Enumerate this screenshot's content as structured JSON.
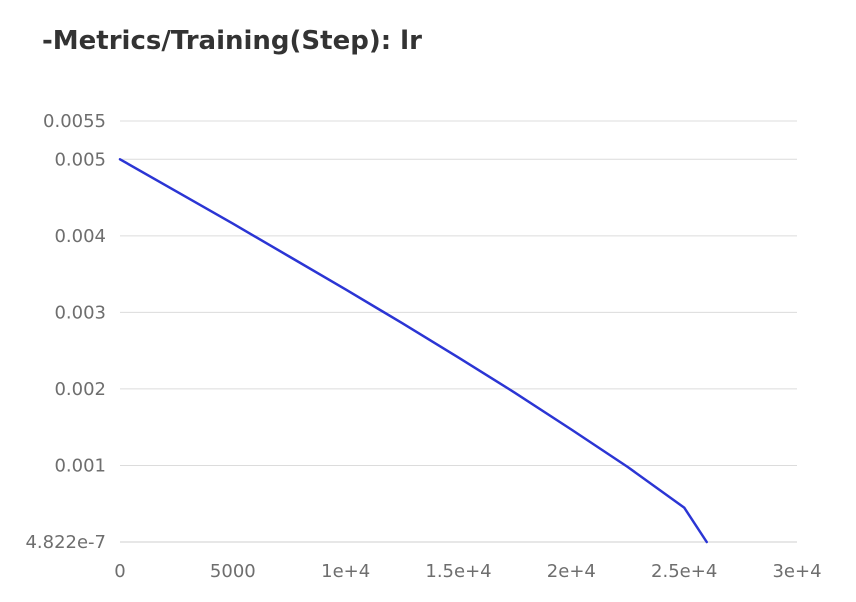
{
  "chart_data": {
    "type": "line",
    "title": "-Metrics/Training(Step): lr",
    "xlabel": "",
    "ylabel": "",
    "xlim": [
      0,
      30000
    ],
    "ylim": [
      4.822e-07,
      0.0055
    ],
    "x_ticks": [
      {
        "value": 0,
        "label": "0"
      },
      {
        "value": 5000,
        "label": "5000"
      },
      {
        "value": 10000,
        "label": "1e+4"
      },
      {
        "value": 15000,
        "label": "1.5e+4"
      },
      {
        "value": 20000,
        "label": "2e+4"
      },
      {
        "value": 25000,
        "label": "2.5e+4"
      },
      {
        "value": 30000,
        "label": "3e+4"
      }
    ],
    "y_ticks": [
      {
        "value": 4.822e-07,
        "label": "4.822e-7"
      },
      {
        "value": 0.001,
        "label": "0.001"
      },
      {
        "value": 0.002,
        "label": "0.002"
      },
      {
        "value": 0.003,
        "label": "0.003"
      },
      {
        "value": 0.004,
        "label": "0.004"
      },
      {
        "value": 0.005,
        "label": "0.005"
      },
      {
        "value": 0.0055,
        "label": "0.0055"
      }
    ],
    "grid": true,
    "legend": "none",
    "series": [
      {
        "color": "#2b35d4",
        "x": [
          0,
          2500,
          5000,
          7500,
          10000,
          12500,
          15000,
          17500,
          20000,
          22500,
          25000,
          26000
        ],
        "y": [
          0.005,
          0.00458,
          0.00416,
          0.00373,
          0.0033,
          0.00286,
          0.00241,
          0.00195,
          0.00147,
          0.00098,
          0.00045,
          5e-07
        ]
      }
    ]
  }
}
